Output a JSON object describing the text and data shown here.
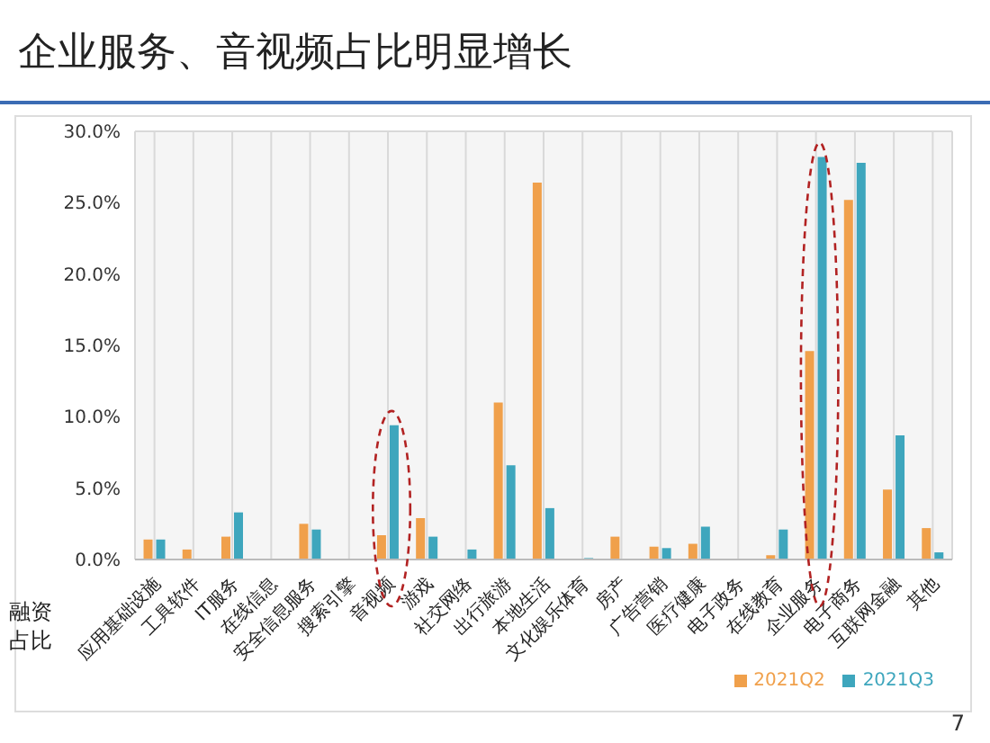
{
  "chart_data": {
    "type": "bar",
    "title": "企业服务、音视频占比明显增长",
    "ylabel": "融资占比",
    "categories": [
      "应用基础设施",
      "工具软件",
      "IT服务",
      "在线信息",
      "安全信息服务",
      "搜索引擎",
      "音视频",
      "游戏",
      "社交网络",
      "出行旅游",
      "本地生活",
      "文化娱乐体育",
      "房产",
      "广告营销",
      "医疗健康",
      "电子政务",
      "在线教育",
      "企业服务",
      "电子商务",
      "互联网金融",
      "其他"
    ],
    "series": [
      {
        "name": "2021Q2",
        "color": "#f0a04b",
        "values": [
          1.4,
          0.7,
          1.6,
          0,
          2.5,
          0,
          1.7,
          2.9,
          0,
          11.0,
          26.4,
          0,
          1.6,
          0.9,
          1.1,
          0,
          0.3,
          14.6,
          25.2,
          4.9,
          2.2
        ]
      },
      {
        "name": "2021Q3",
        "color": "#3ea6bd",
        "values": [
          1.4,
          0,
          3.3,
          0,
          2.1,
          0,
          9.4,
          1.6,
          0.7,
          6.6,
          3.6,
          0.1,
          0,
          0.8,
          2.3,
          0,
          2.1,
          28.2,
          27.8,
          8.7,
          0.5
        ]
      }
    ],
    "ylim": [
      0,
      30
    ],
    "yticks": [
      {
        "value": 0,
        "label": "0.0%"
      },
      {
        "value": 5,
        "label": "5.0%"
      },
      {
        "value": 10,
        "label": "10.0%"
      },
      {
        "value": 15,
        "label": "15.0%"
      },
      {
        "value": 20,
        "label": "20.0%"
      },
      {
        "value": 25,
        "label": "25.0%"
      },
      {
        "value": 30,
        "label": "30.0%"
      }
    ],
    "grid": true,
    "legend": "bottom right",
    "annotations": [
      "7"
    ]
  }
}
